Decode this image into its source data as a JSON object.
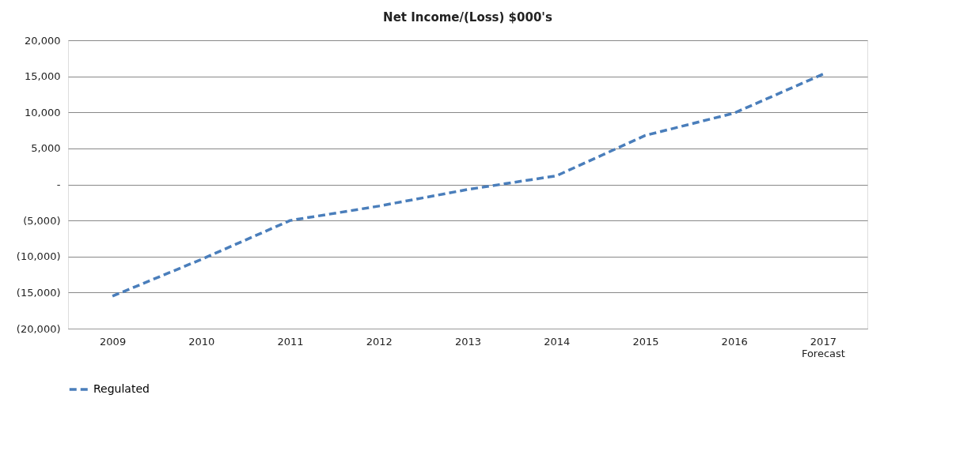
{
  "chart_data": {
    "type": "line",
    "title": "Net Income/(Loss) $000's",
    "categories": [
      "2009",
      "2010",
      "2011",
      "2012",
      "2013",
      "2014",
      "2015",
      "2016",
      "2017\nForecast"
    ],
    "series": [
      {
        "name": "Regulated",
        "color": "#4a7ebb",
        "values": [
          -15500,
          -10400,
          -5000,
          -3000,
          -700,
          1200,
          6800,
          9900,
          15300
        ]
      }
    ],
    "ylim": [
      -20000,
      20000
    ],
    "yticks": [
      {
        "value": -20000,
        "label": "(20,000)"
      },
      {
        "value": -15000,
        "label": "(15,000)"
      },
      {
        "value": -10000,
        "label": "(10,000)"
      },
      {
        "value": -5000,
        "label": "(5,000)"
      },
      {
        "value": 0,
        "label": "-"
      },
      {
        "value": 5000,
        "label": "5,000"
      },
      {
        "value": 10000,
        "label": "10,000"
      },
      {
        "value": 15000,
        "label": "15,000"
      },
      {
        "value": 20000,
        "label": "20,000"
      }
    ],
    "grid": "y",
    "legend": "bottom",
    "line_style": "dashed",
    "marker": "none"
  }
}
